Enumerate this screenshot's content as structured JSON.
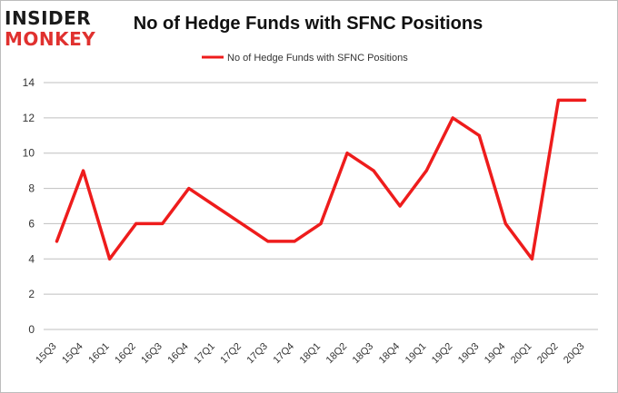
{
  "logo": {
    "line1": "INSIDER",
    "line2": "MONKEY"
  },
  "colors": {
    "series": "#ee1c1c",
    "grid": "#bfbfbf",
    "axis_text": "#333333",
    "logo_red": "#e0312f"
  },
  "chart_data": {
    "type": "line",
    "title": "No of Hedge Funds with SFNC Positions",
    "xlabel": "",
    "ylabel": "",
    "categories": [
      "15Q3",
      "15Q4",
      "16Q1",
      "16Q2",
      "16Q3",
      "16Q4",
      "17Q1",
      "17Q2",
      "17Q3",
      "17Q4",
      "18Q1",
      "18Q2",
      "18Q3",
      "18Q4",
      "19Q1",
      "19Q2",
      "19Q3",
      "19Q4",
      "20Q1",
      "20Q2",
      "20Q3"
    ],
    "series": [
      {
        "name": "No of Hedge Funds with SFNC Positions",
        "values": [
          5,
          9,
          4,
          6,
          6,
          8,
          7,
          6,
          5,
          5,
          6,
          10,
          9,
          7,
          9,
          12,
          11,
          6,
          4,
          13,
          13
        ]
      }
    ],
    "yticks": [
      "0",
      "2",
      "4",
      "6",
      "8",
      "10",
      "12",
      "14"
    ],
    "ylim": [
      0,
      14
    ],
    "grid": true,
    "legend_position": "top-center"
  }
}
